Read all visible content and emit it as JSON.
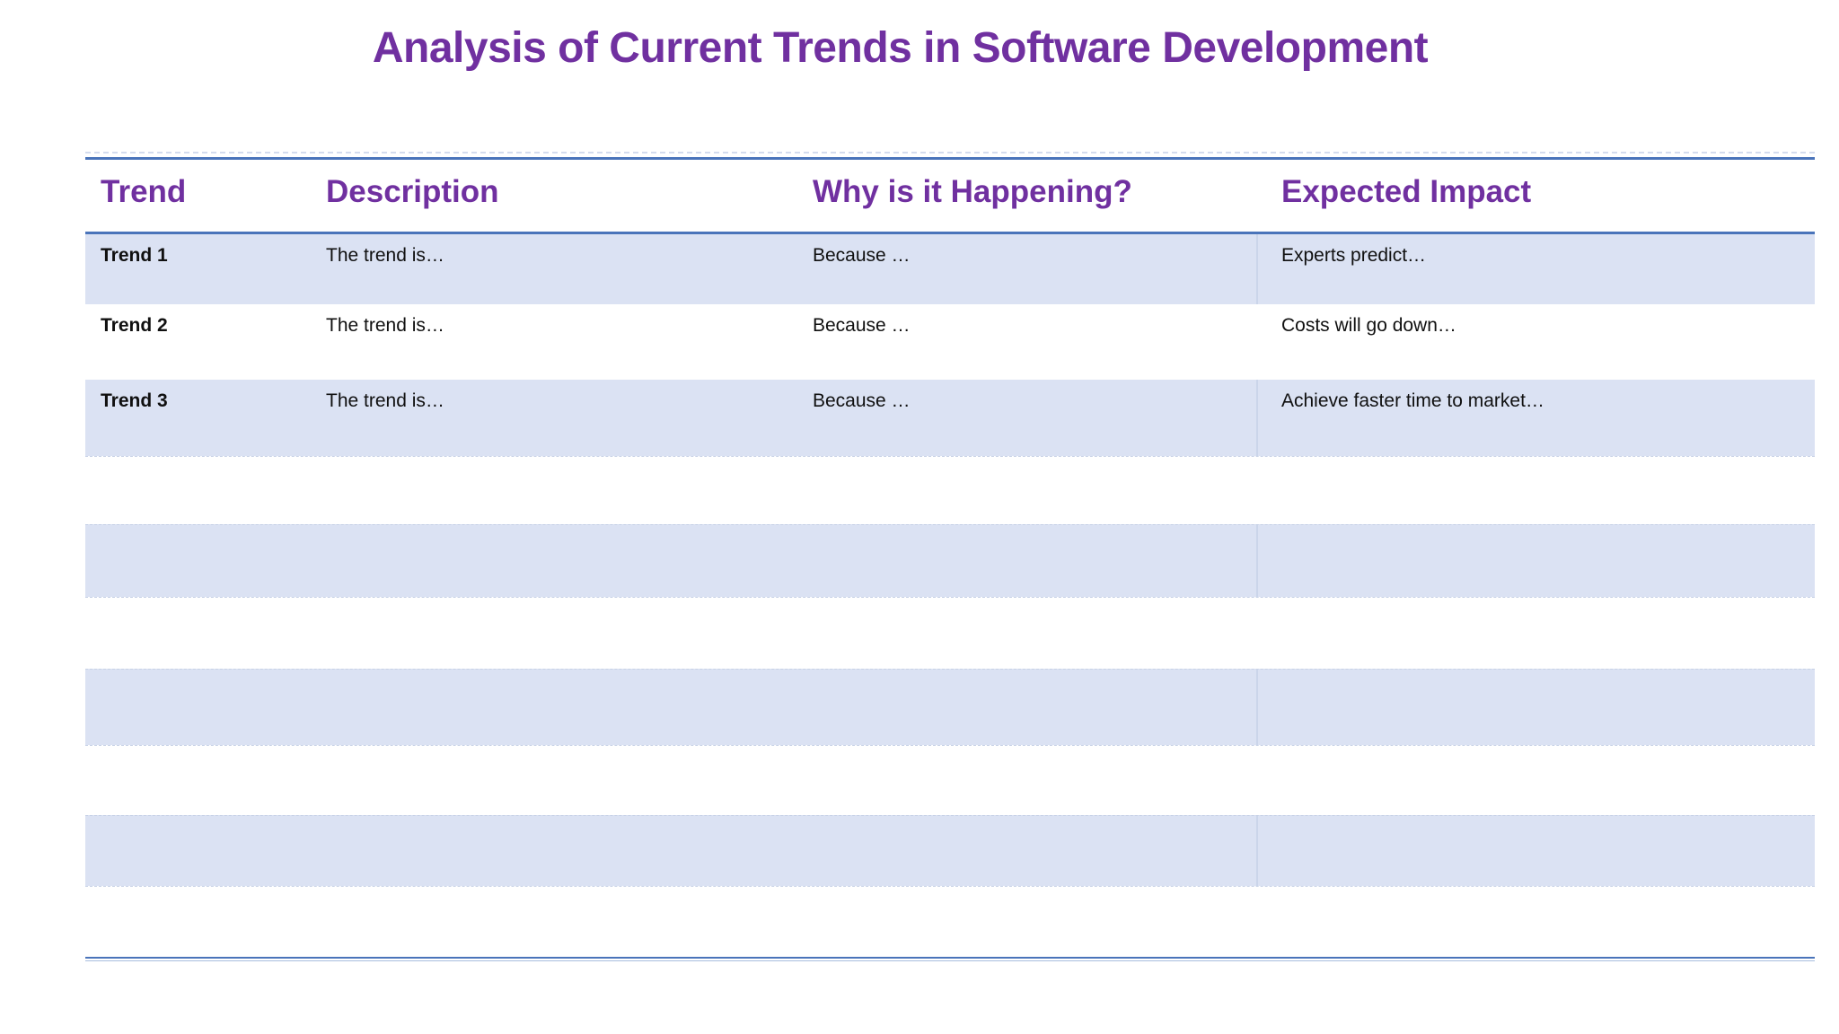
{
  "document": {
    "title": "Analysis of Current Trends in Software Development"
  },
  "table": {
    "columns": [
      "Trend",
      "Description",
      "Why is it Happening?",
      "Expected Impact"
    ],
    "rows": [
      {
        "trend": "Trend 1",
        "description": "The trend is…",
        "why": "Because …",
        "impact": "Experts predict…"
      },
      {
        "trend": "Trend 2",
        "description": "The trend is…",
        "why": "Because …",
        "impact": "Costs will go down…"
      },
      {
        "trend": "Trend 3",
        "description": "The trend is…",
        "why": "Because …",
        "impact": "Achieve faster time to market…"
      }
    ],
    "empty_row_count": 7,
    "banding": "alternating shaded rows"
  },
  "colors": {
    "accent_purple": "#7030a0",
    "band_fill": "#dbe2f3",
    "border_blue": "#4a74ba",
    "body_text": "#101010"
  }
}
